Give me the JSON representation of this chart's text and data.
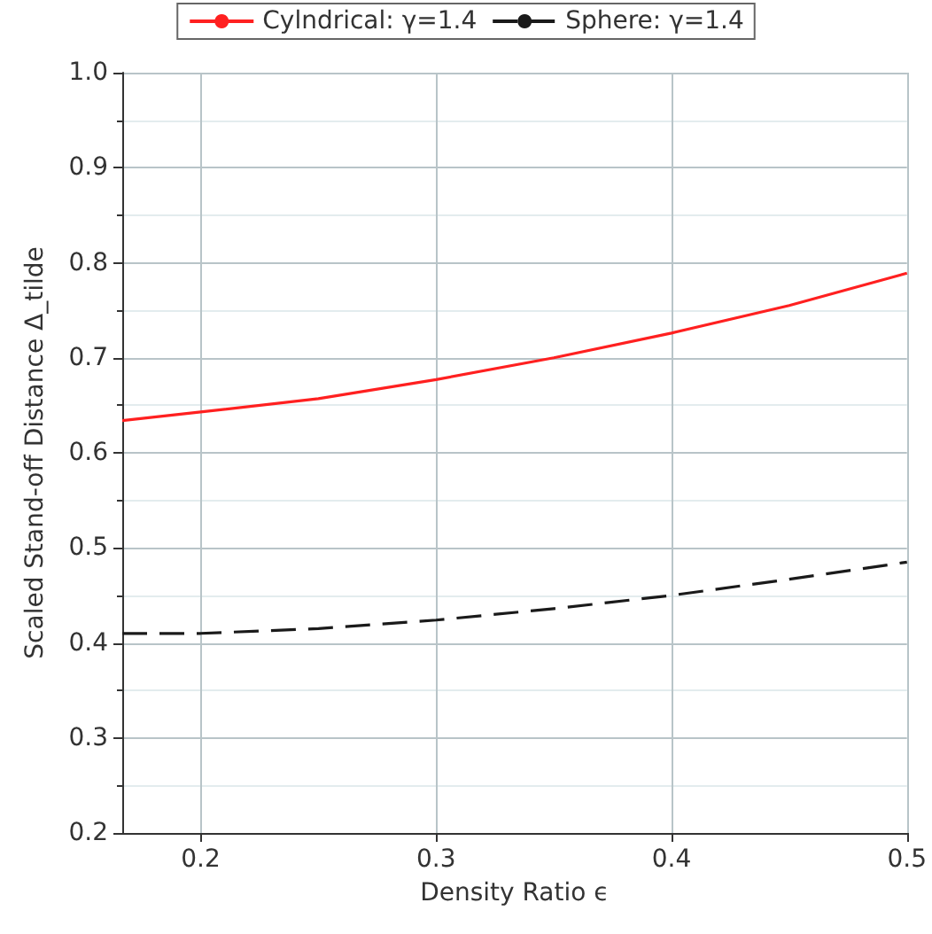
{
  "chart_data": {
    "type": "line",
    "xlabel": "Density Ratio ϵ",
    "ylabel": "Scaled Stand-off Distance Δ_tilde",
    "x": [
      0.1667,
      0.2,
      0.25,
      0.3,
      0.35,
      0.4,
      0.45,
      0.5
    ],
    "series": [
      {
        "name": "Cylndrical: γ=1.4",
        "color": "#ff2020",
        "line_style": "solid",
        "values": [
          0.634,
          0.643,
          0.657,
          0.677,
          0.7,
          0.726,
          0.755,
          0.789
        ]
      },
      {
        "name": "Sphere: γ=1.4",
        "color": "#1a1a1a",
        "line_style": "dashed",
        "values": [
          0.41,
          0.41,
          0.415,
          0.424,
          0.436,
          0.45,
          0.467,
          0.485
        ]
      }
    ],
    "xlim": [
      0.1667,
      0.5
    ],
    "xticks": [
      0.2,
      0.3,
      0.4,
      0.5
    ],
    "ylim": [
      0.2,
      1.0
    ],
    "yticks": [
      0.2,
      0.3,
      0.4,
      0.5,
      0.6,
      0.7,
      0.8,
      0.9,
      {
        "value": 1.0,
        "label": "1.0"
      }
    ],
    "grid": true,
    "legend": "top",
    "marker": "none"
  }
}
